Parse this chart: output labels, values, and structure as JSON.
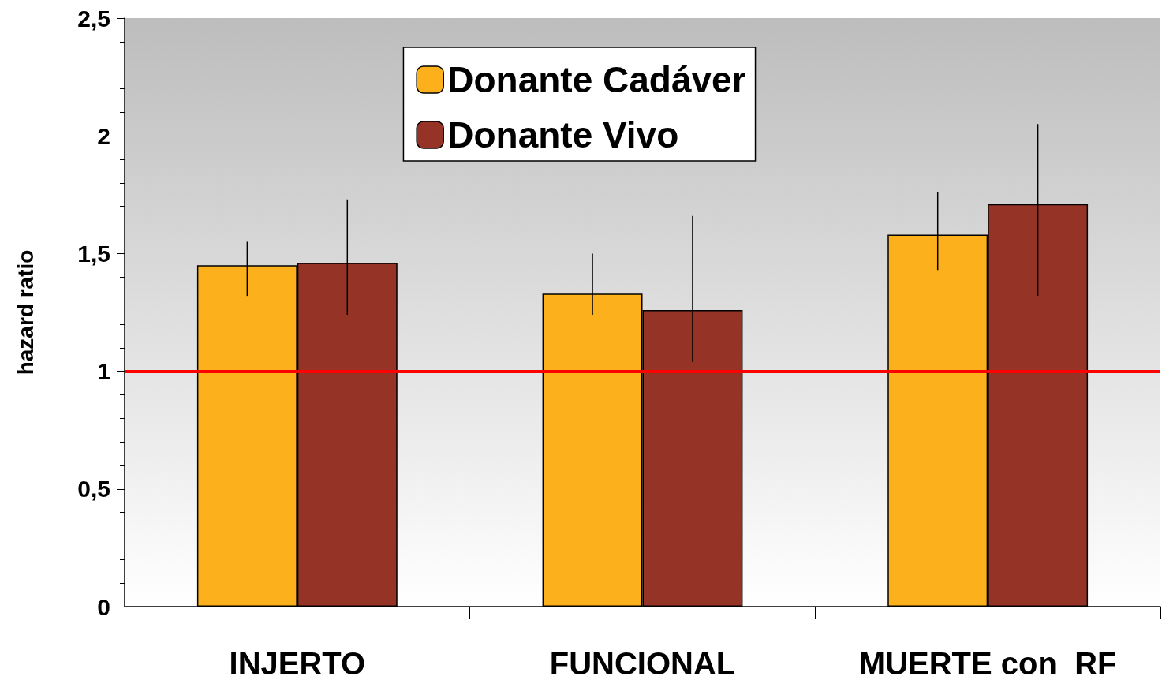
{
  "chart_data": {
    "type": "bar",
    "ylabel": "hazard ratio",
    "categories": [
      "INJERTO",
      "FUNCIONAL",
      "MUERTE con  RF"
    ],
    "series": [
      {
        "name": "Donante Cadáver",
        "color": "#fbb01c",
        "values": [
          1.45,
          1.33,
          1.58
        ],
        "errors": [
          [
            1.32,
            1.55
          ],
          [
            1.24,
            1.5
          ],
          [
            1.43,
            1.76
          ]
        ]
      },
      {
        "name": "Donante Vivo",
        "color": "#943326",
        "values": [
          1.46,
          1.26,
          1.71
        ],
        "errors": [
          [
            1.24,
            1.73
          ],
          [
            1.04,
            1.66
          ],
          [
            1.32,
            2.05
          ]
        ]
      }
    ],
    "ylim": [
      0,
      2.5
    ],
    "yticks": [
      0,
      {
        "value": 0.5,
        "label": "0,5"
      },
      1,
      {
        "value": 1.5,
        "label": "1,5"
      },
      2,
      {
        "value": 2.5,
        "label": "2,5"
      }
    ],
    "ref_lines": [
      {
        "axis": "y",
        "value": 1,
        "color": "#ff0000"
      }
    ],
    "grid": false,
    "legend": "top"
  }
}
